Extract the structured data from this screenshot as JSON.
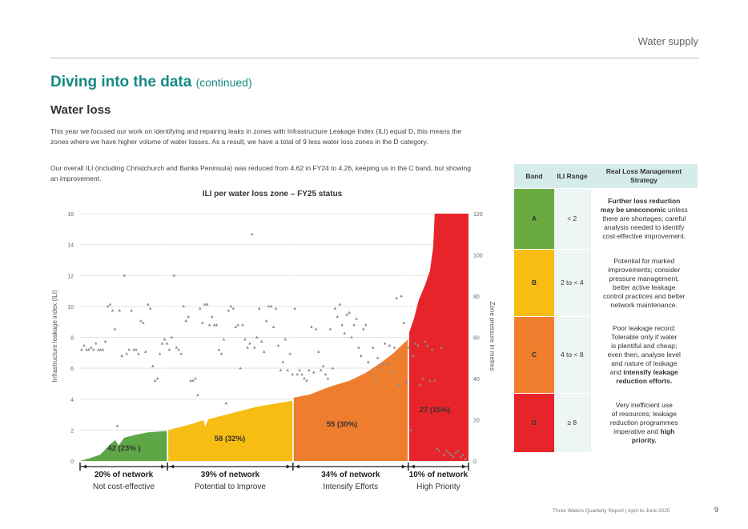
{
  "header": {
    "section": "Water supply"
  },
  "title": {
    "main": "Diving into the data",
    "suffix": "(continued)"
  },
  "section": {
    "title": "Water loss"
  },
  "paragraphs": {
    "p1": "This year we focused our work on identifying and repairing leaks in zones with Infrastructure Leakage Index (ILI) equal D, this means the zones where we have higher volume of water losses. As a result, we have a total of 9 less water loss zones in the D category.",
    "p2": "Our overall ILI (including Christchurch and Banks Peninsula) was reduced from 4.62 in FY24 to 4.26, keeping us in the C band, but showing an improvement."
  },
  "chart_data": {
    "type": "area",
    "title": "ILI per water loss zone – FY25 status",
    "ylabel": "Infrastructure leakage index (ILI)",
    "y2label": "Zone pressure in metres",
    "ylim": [
      0,
      16
    ],
    "y2lim": [
      0,
      120
    ],
    "yticks": [
      "0",
      "2",
      "4",
      "6",
      "8",
      "10",
      "12",
      "14",
      "16"
    ],
    "y2ticks": [
      "0",
      "20",
      "40",
      "60",
      "80",
      "100",
      "120"
    ],
    "grid": true,
    "segments": [
      {
        "label": "42 (23% )",
        "network": "20% of network",
        "category": "Not cost-effective",
        "color": "#5ea746",
        "ili_start": 0,
        "ili_end": 2
      },
      {
        "label": "58 (32%)",
        "network": "39% of network",
        "category": "Potential to Improve",
        "color": "#f7bd12",
        "ili_start": 2,
        "ili_end": 4
      },
      {
        "label": "55 (30%)",
        "network": "34% of network",
        "category": "Intensify Efforts",
        "color": "#ee7d2e",
        "ili_start": 4,
        "ili_end": 8
      },
      {
        "label": "27 (15%)",
        "network": "10% of network",
        "category": "High Priority",
        "color": "#e8242b",
        "ili_start": 8,
        "ili_end": 16
      }
    ],
    "pressure_points": [
      [
        1,
        54
      ],
      [
        2,
        56
      ],
      [
        3,
        54
      ],
      [
        4,
        54
      ],
      [
        5,
        55
      ],
      [
        6,
        54
      ],
      [
        7,
        57
      ],
      [
        8,
        54
      ],
      [
        9,
        54
      ],
      [
        10,
        54
      ],
      [
        11,
        58
      ],
      [
        12,
        75
      ],
      [
        13,
        76
      ],
      [
        14,
        73
      ],
      [
        15,
        64
      ],
      [
        16,
        17
      ],
      [
        17,
        73
      ],
      [
        18,
        51
      ],
      [
        19,
        90
      ],
      [
        20,
        52
      ],
      [
        21,
        54
      ],
      [
        22,
        73
      ],
      [
        23,
        54
      ],
      [
        24,
        54
      ],
      [
        25,
        52
      ],
      [
        26,
        68
      ],
      [
        27,
        67
      ],
      [
        28,
        53
      ],
      [
        29,
        76
      ],
      [
        30,
        74
      ],
      [
        31,
        46
      ],
      [
        32,
        39
      ],
      [
        33,
        40
      ],
      [
        34,
        52
      ],
      [
        35,
        57
      ],
      [
        36,
        59
      ],
      [
        37,
        57
      ],
      [
        38,
        54
      ],
      [
        39,
        60
      ],
      [
        40,
        90
      ],
      [
        41,
        55
      ],
      [
        42,
        54
      ],
      [
        43,
        52
      ],
      [
        44,
        75
      ],
      [
        45,
        68
      ],
      [
        46,
        70
      ],
      [
        47,
        39
      ],
      [
        48,
        39
      ],
      [
        49,
        40
      ],
      [
        50,
        32
      ],
      [
        51,
        74
      ],
      [
        52,
        67
      ],
      [
        53,
        76
      ],
      [
        54,
        76
      ],
      [
        55,
        66
      ],
      [
        56,
        70
      ],
      [
        57,
        66
      ],
      [
        58,
        66
      ],
      [
        59,
        54
      ],
      [
        60,
        52
      ],
      [
        61,
        59
      ],
      [
        62,
        28
      ],
      [
        63,
        73
      ],
      [
        64,
        75
      ],
      [
        65,
        74
      ],
      [
        66,
        65
      ],
      [
        67,
        66
      ],
      [
        68,
        45
      ],
      [
        69,
        66
      ],
      [
        70,
        59
      ],
      [
        71,
        55
      ],
      [
        72,
        57
      ],
      [
        73,
        110
      ],
      [
        74,
        55
      ],
      [
        75,
        60
      ],
      [
        76,
        74
      ],
      [
        77,
        58
      ],
      [
        78,
        53
      ],
      [
        79,
        68
      ],
      [
        80,
        75
      ],
      [
        81,
        75
      ],
      [
        82,
        65
      ],
      [
        83,
        74
      ],
      [
        84,
        56
      ],
      [
        85,
        44
      ],
      [
        86,
        48
      ],
      [
        87,
        59
      ],
      [
        88,
        44
      ],
      [
        89,
        52
      ],
      [
        90,
        42
      ],
      [
        91,
        74
      ],
      [
        92,
        42
      ],
      [
        93,
        44
      ],
      [
        94,
        42
      ],
      [
        95,
        40
      ],
      [
        96,
        39
      ],
      [
        97,
        44
      ],
      [
        98,
        65
      ],
      [
        99,
        43
      ],
      [
        100,
        64
      ],
      [
        101,
        53
      ],
      [
        102,
        44
      ],
      [
        103,
        46
      ],
      [
        104,
        42
      ],
      [
        105,
        40
      ],
      [
        106,
        64
      ],
      [
        107,
        45
      ],
      [
        108,
        74
      ],
      [
        109,
        70
      ],
      [
        110,
        76
      ],
      [
        111,
        66
      ],
      [
        112,
        62
      ],
      [
        113,
        71
      ],
      [
        114,
        72
      ],
      [
        115,
        60
      ],
      [
        116,
        66
      ],
      [
        117,
        69
      ],
      [
        118,
        55
      ],
      [
        119,
        51
      ],
      [
        120,
        64
      ],
      [
        121,
        66
      ],
      [
        122,
        48
      ],
      [
        123,
        42
      ],
      [
        124,
        55
      ],
      [
        125,
        40
      ],
      [
        126,
        50
      ],
      [
        127,
        45
      ],
      [
        128,
        47
      ],
      [
        129,
        57
      ],
      [
        130,
        47
      ],
      [
        131,
        56
      ],
      [
        132,
        43
      ],
      [
        133,
        55
      ],
      [
        134,
        79
      ],
      [
        135,
        37
      ],
      [
        136,
        80
      ],
      [
        137,
        67
      ],
      [
        138,
        38
      ],
      [
        139,
        55
      ],
      [
        140,
        15
      ],
      [
        141,
        51
      ],
      [
        142,
        57
      ],
      [
        143,
        56
      ],
      [
        144,
        37
      ],
      [
        145,
        40
      ],
      [
        146,
        58
      ],
      [
        147,
        56
      ],
      [
        148,
        39
      ],
      [
        149,
        54
      ],
      [
        150,
        39
      ],
      [
        151,
        6
      ],
      [
        152,
        5
      ],
      [
        153,
        55
      ],
      [
        154,
        3
      ],
      [
        155,
        5
      ],
      [
        156,
        4
      ],
      [
        157,
        3
      ],
      [
        158,
        2
      ],
      [
        159,
        4
      ],
      [
        160,
        5
      ],
      [
        161,
        2
      ],
      [
        162,
        3
      ],
      [
        163,
        1
      ]
    ]
  },
  "table": {
    "headers": {
      "band": "Band",
      "range": "ILI Range",
      "strategy": "Real Loss Management Strategy"
    },
    "rows": [
      {
        "band": "A",
        "color": "#6aaa3f",
        "range": "< 2",
        "strategy_lines": [
          "Further loss reduction",
          "may be uneconomic unless",
          "there are shortages; careful",
          "analysis needed to identify",
          "cost-effective improvement."
        ],
        "bold_lines": 2
      },
      {
        "band": "B",
        "color": "#f7bd12",
        "range": "2 to < 4",
        "strategy_lines": [
          "Potential for marked",
          "improvements; consider",
          "pressure management,",
          "better active leakage",
          "control practices and better",
          "network maintenance."
        ],
        "bold_lines": 0
      },
      {
        "band": "C",
        "color": "#ef7e2f",
        "range": "4 to < 8",
        "strategy_lines": [
          "Poor leakage record:",
          "Tolerable only if water",
          "is plentiful and cheap;",
          "even then, analyse level",
          "and nature of leakage",
          "and intensify leakage",
          "reduction efforts."
        ],
        "bold_lines": 0
      },
      {
        "band": "D",
        "color": "#e8242b",
        "range": "≥ 8",
        "strategy_lines": [
          "Very inefficient use",
          "of resources; leakage",
          "reduction programmes",
          "imperative and high",
          "priority."
        ],
        "bold_lines": 0
      }
    ]
  },
  "footer": {
    "report": "Three Waters Quarterly Report | April to June 2025",
    "page": "9"
  }
}
